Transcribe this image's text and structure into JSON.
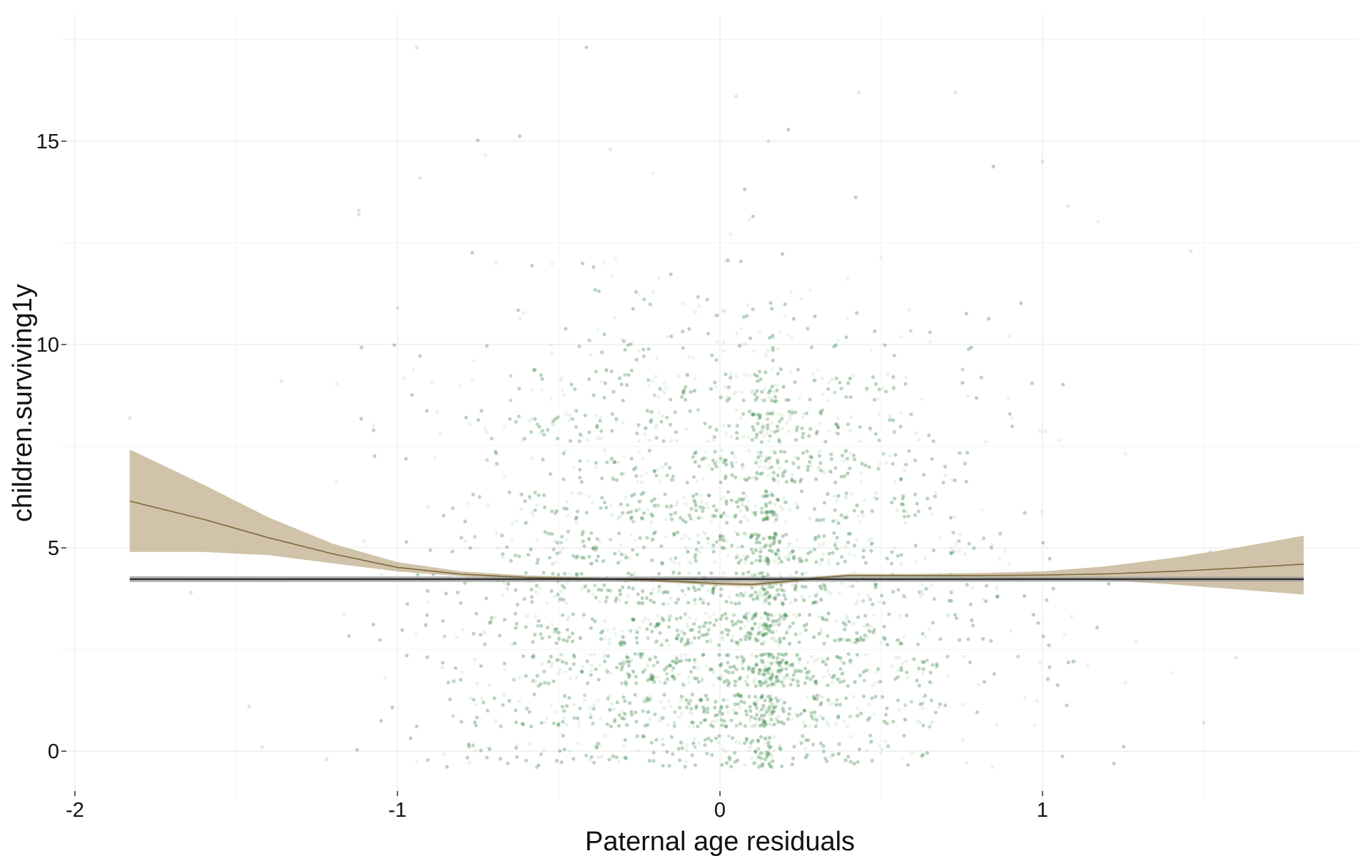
{
  "chart_data": {
    "type": "scatter",
    "title": "",
    "xlabel": "Paternal age residuals",
    "ylabel": "children.surviving1y",
    "xlim": [
      -2.05,
      1.98
    ],
    "ylim": [
      -1.2,
      18.1
    ],
    "x_ticks": [
      -2,
      -1,
      0,
      1
    ],
    "x_tick_labels": [
      "-2",
      "-1",
      "0",
      "1"
    ],
    "y_ticks": [
      0,
      5,
      10,
      15
    ],
    "y_tick_labels": [
      "0",
      "5",
      "10",
      "15"
    ],
    "x_minor_ticks": [
      -1.5,
      -0.5,
      0.5,
      1.5
    ],
    "y_minor_ticks": [
      2.5,
      7.5,
      12.5,
      17.5
    ],
    "grid": true,
    "legend": "none",
    "points": {
      "description_integer_y": [
        0,
        1,
        2,
        3,
        4,
        5,
        6,
        7,
        8,
        9,
        10,
        11,
        12,
        13,
        14,
        15,
        16,
        17
      ],
      "jitter_y": 0.4,
      "x_center": 0.0,
      "x_spread_sd": 0.42,
      "count": 9000,
      "color": "#3a8a45",
      "alpha": 0.1,
      "outliers": [
        {
          "x": -0.94,
          "y": 17.3
        },
        {
          "x": 0.05,
          "y": 16.1
        },
        {
          "x": 0.73,
          "y": 16.2
        },
        {
          "x": 0.43,
          "y": 16.2
        },
        {
          "x": -0.34,
          "y": 14.8
        },
        {
          "x": -0.93,
          "y": 14.1
        },
        {
          "x": 0.15,
          "y": 15.0
        },
        {
          "x": -1.12,
          "y": 13.3
        },
        {
          "x": -1.12,
          "y": 13.2
        },
        {
          "x": -1.0,
          "y": 10.9
        },
        {
          "x": -1.36,
          "y": 9.1
        },
        {
          "x": -1.83,
          "y": 8.2
        },
        {
          "x": 1.0,
          "y": 14.5
        },
        {
          "x": 1.08,
          "y": 13.4
        },
        {
          "x": 1.46,
          "y": 12.3
        },
        {
          "x": -1.46,
          "y": 1.1
        },
        {
          "x": -1.42,
          "y": 0.1
        },
        {
          "x": -1.22,
          "y": -0.2
        },
        {
          "x": 1.5,
          "y": 0.7
        },
        {
          "x": 1.52,
          "y": 4.9
        },
        {
          "x": 1.6,
          "y": 2.3
        },
        {
          "x": -1.64,
          "y": 3.9
        }
      ]
    },
    "series": [
      {
        "type": "smooth-band",
        "color": "#7a6a3a",
        "band_color": "#c9b99a",
        "x": [
          -1.83,
          -1.6,
          -1.4,
          -1.2,
          -1.0,
          -0.8,
          -0.6,
          -0.4,
          -0.2,
          0.0,
          0.1,
          0.2,
          0.3,
          0.4,
          0.6,
          0.8,
          1.0,
          1.2,
          1.4,
          1.6,
          1.81
        ],
        "y": [
          6.15,
          5.7,
          5.25,
          4.85,
          4.52,
          4.35,
          4.27,
          4.24,
          4.2,
          4.12,
          4.1,
          4.17,
          4.26,
          4.32,
          4.32,
          4.32,
          4.33,
          4.36,
          4.42,
          4.5,
          4.6
        ],
        "lower": [
          4.9,
          4.9,
          4.82,
          4.62,
          4.42,
          4.3,
          4.23,
          4.2,
          4.16,
          4.07,
          4.05,
          4.12,
          4.22,
          4.28,
          4.28,
          4.27,
          4.25,
          4.2,
          4.1,
          3.98,
          3.85
        ],
        "upper": [
          7.42,
          6.55,
          5.75,
          5.1,
          4.65,
          4.42,
          4.32,
          4.28,
          4.24,
          4.17,
          4.15,
          4.22,
          4.3,
          4.36,
          4.36,
          4.38,
          4.42,
          4.55,
          4.75,
          5.0,
          5.3
        ]
      },
      {
        "type": "linear-band",
        "color": "#222222",
        "band_color": "#9a9a9a",
        "x": [
          -1.83,
          1.81
        ],
        "y": [
          4.23,
          4.23
        ],
        "lower": [
          4.16,
          4.17
        ],
        "upper": [
          4.3,
          4.29
        ]
      }
    ]
  }
}
